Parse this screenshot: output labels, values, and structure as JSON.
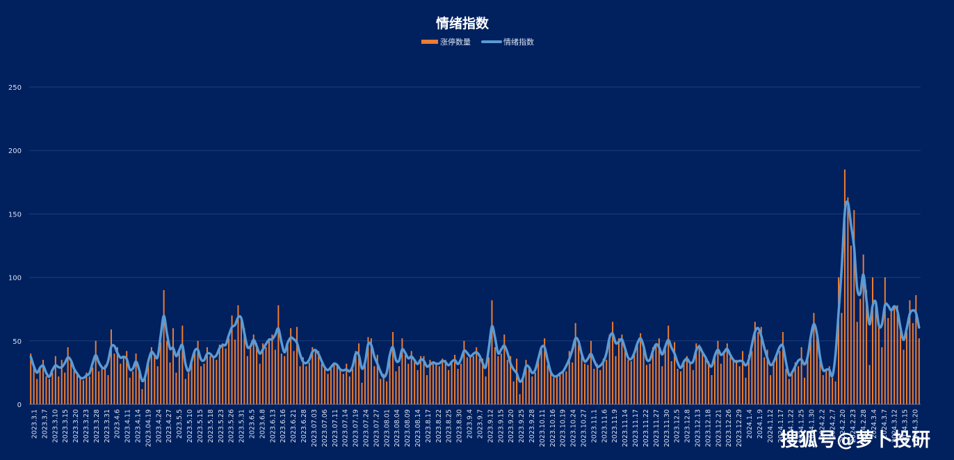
{
  "chart_data": {
    "type": "bar",
    "title": "情绪指数",
    "legend_position": "top-center",
    "grid": true,
    "ylim": [
      0,
      250
    ],
    "yticks": [
      0,
      50,
      100,
      150,
      200,
      250
    ],
    "series": [
      {
        "name": "涨停数量",
        "type": "bar",
        "color": "#ed7d31"
      },
      {
        "name": "情绪指数",
        "type": "line",
        "color": "#5b9bd5"
      }
    ],
    "x_tick_labels": [
      "2023.3.1",
      "2023.3.7",
      "2023.3.10",
      "2023.3.15",
      "2023.3.20",
      "2023.3.23",
      "2023.3.28",
      "2023.3.31",
      "2023.4.6",
      "2023.4.11",
      "2023.4.14",
      "2023.04.19",
      "2023.4.24",
      "2023.4.27",
      "2023.5.5",
      "2023.5.10",
      "2023.5.15",
      "2023.5.18",
      "2023.5.23",
      "2023.5.26",
      "2023.5.31",
      "2023.6.5",
      "2023.6.8",
      "2023.6.13",
      "2023.6.16",
      "2023.6.21",
      "2023.6.28",
      "2023.07.03",
      "2023.07.06",
      "2023.07.11",
      "2023.07.14",
      "2023.07.19",
      "2023.07.24",
      "2023.07.27",
      "2023.08.01",
      "2023.08.04",
      "2023.08.09",
      "2023.08.14",
      "2023.8.17",
      "2023.8.22",
      "2023.8.25",
      "2023.8.30",
      "2023.9.4",
      "2023.9.7",
      "2023.9.12",
      "2023.9.15",
      "2023.9.20",
      "2023.9.25",
      "2023.9.28",
      "2023.10.11",
      "2023.10.16",
      "2023.10.19",
      "2023.10.24",
      "2023.10.27",
      "2023.11.1",
      "2023.11.6",
      "2023.11.9",
      "2023.11.14",
      "2023.11.17",
      "2023.11.22",
      "2023.11.27",
      "2023.11.30",
      "2023.12.5",
      "2023.12.8",
      "2023.12.13",
      "2023.12.18",
      "2023.12.21",
      "2023.12.26",
      "2023.12.29",
      "2024.1.4",
      "2024.1.9",
      "2024.1.12",
      "2024.1.17",
      "2024.1.22",
      "2024.1.25",
      "2024.1.30",
      "2024.2.2",
      "2024.2.7",
      "2024.2.20",
      "2024.2.23",
      "2024.2.28",
      "2024.3.4",
      "2024.3.7",
      "2024.3.12",
      "2024.3.15",
      "2024.3.20"
    ],
    "limit_up_counts": [
      40,
      30,
      20,
      30,
      35,
      22,
      20,
      25,
      38,
      22,
      35,
      25,
      45,
      33,
      27,
      25,
      20,
      19,
      25,
      22,
      29,
      50,
      26,
      30,
      31,
      23,
      59,
      40,
      45,
      32,
      38,
      42,
      21,
      26,
      40,
      29,
      12,
      21,
      35,
      45,
      40,
      30,
      49,
      90,
      50,
      33,
      60,
      25,
      42,
      62,
      20,
      25,
      35,
      42,
      50,
      30,
      32,
      45,
      38,
      38,
      35,
      47,
      48,
      44,
      52,
      70,
      51,
      78,
      67,
      60,
      38,
      45,
      55,
      48,
      32,
      48,
      45,
      52,
      55,
      43,
      78,
      40,
      38,
      48,
      60,
      42,
      61,
      30,
      37,
      30,
      33,
      45,
      42,
      42,
      32,
      30,
      24,
      30,
      33,
      32,
      27,
      24,
      32,
      22,
      28,
      42,
      48,
      17,
      31,
      53,
      52,
      30,
      39,
      20,
      24,
      18,
      40,
      57,
      26,
      30,
      52,
      39,
      32,
      42,
      35,
      27,
      38,
      38,
      23,
      35,
      32,
      33,
      30,
      36,
      35,
      27,
      34,
      39,
      28,
      32,
      50,
      37,
      38,
      38,
      45,
      36,
      36,
      22,
      37,
      82,
      45,
      38,
      40,
      55,
      35,
      38,
      18,
      36,
      8,
      20,
      35,
      30,
      22,
      25,
      37,
      45,
      52,
      31,
      25,
      21,
      22,
      24,
      27,
      26,
      42,
      33,
      64,
      47,
      40,
      32,
      31,
      50,
      28,
      32,
      27,
      36,
      35,
      55,
      65,
      38,
      52,
      55,
      43,
      35,
      34,
      40,
      48,
      56,
      48,
      31,
      32,
      45,
      46,
      52,
      30,
      45,
      62,
      34,
      49,
      28,
      26,
      35,
      38,
      33,
      27,
      48,
      47,
      40,
      37,
      34,
      23,
      40,
      50,
      32,
      42,
      48,
      37,
      34,
      35,
      30,
      42,
      21,
      39,
      42,
      65,
      57,
      61,
      37,
      43,
      23,
      35,
      40,
      42,
      57,
      28,
      20,
      24,
      33,
      30,
      45,
      21,
      39,
      51,
      72,
      58,
      34,
      23,
      28,
      30,
      21,
      18,
      100,
      72,
      185,
      163,
      125,
      153,
      65,
      83,
      118,
      90,
      31,
      100,
      80,
      62,
      45,
      100,
      68,
      75,
      78,
      78,
      60,
      43,
      57,
      82,
      64,
      86,
      52
    ]
  },
  "watermark": "搜狐号@萝卜投研"
}
